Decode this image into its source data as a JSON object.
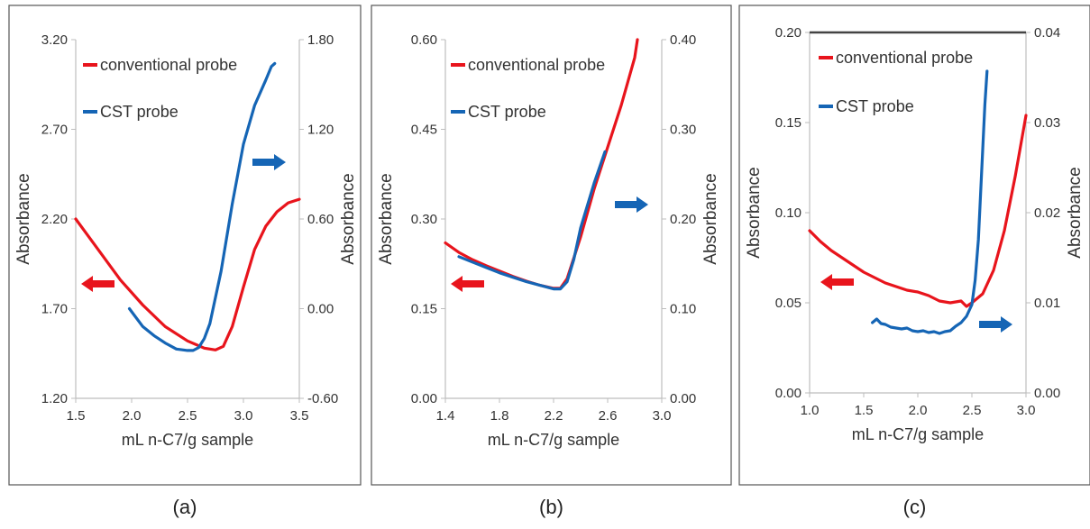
{
  "colors": {
    "conventional": "#e8141c",
    "cst": "#1565b5",
    "axis": "#bdbdbd",
    "frame": "#555555"
  },
  "chart_data": [
    {
      "type": "line",
      "caption": "(a)",
      "xlabel": "mL n-C7/g sample",
      "ylabel_left": "Absorbance",
      "ylabel_right": "Absorbance",
      "xlim": [
        1.5,
        3.5
      ],
      "x_ticks": [
        "1.5",
        "2.0",
        "2.5",
        "3.0",
        "3.5"
      ],
      "y_left_lim": [
        1.2,
        3.2
      ],
      "y_left_ticks": [
        "1.20",
        "1.70",
        "2.20",
        "2.70",
        "3.20"
      ],
      "y_right_lim": [
        -0.6,
        1.8
      ],
      "y_right_ticks": [
        "-0.60",
        "0.00",
        "0.60",
        "1.20",
        "1.80"
      ],
      "legend": [
        "conventional probe",
        "CST probe"
      ],
      "arrows": {
        "conventional": "left",
        "cst": "right"
      },
      "series": [
        {
          "name": "conventional probe",
          "axis": "left",
          "x": [
            1.5,
            1.7,
            1.9,
            2.1,
            2.3,
            2.5,
            2.65,
            2.75,
            2.82,
            2.9,
            3.0,
            3.1,
            3.2,
            3.3,
            3.4,
            3.5
          ],
          "y": [
            2.2,
            2.03,
            1.86,
            1.72,
            1.6,
            1.52,
            1.48,
            1.47,
            1.49,
            1.6,
            1.82,
            2.03,
            2.16,
            2.24,
            2.29,
            2.31
          ]
        },
        {
          "name": "CST probe",
          "axis": "right",
          "x": [
            1.98,
            2.1,
            2.2,
            2.3,
            2.4,
            2.5,
            2.55,
            2.6,
            2.65,
            2.7,
            2.8,
            2.9,
            3.0,
            3.1,
            3.2,
            3.25,
            3.28
          ],
          "y": [
            0.0,
            -0.12,
            -0.18,
            -0.23,
            -0.27,
            -0.28,
            -0.28,
            -0.26,
            -0.2,
            -0.1,
            0.25,
            0.7,
            1.1,
            1.36,
            1.53,
            1.62,
            1.64
          ]
        }
      ]
    },
    {
      "type": "line",
      "caption": "(b)",
      "xlabel": "mL n-C7/g sample",
      "ylabel_left": "Absorbance",
      "ylabel_right": "Absorbance",
      "xlim": [
        1.4,
        3.0
      ],
      "x_ticks": [
        "1.4",
        "1.8",
        "2.2",
        "2.6",
        "3.0"
      ],
      "y_left_lim": [
        0.0,
        0.6
      ],
      "y_left_ticks": [
        "0.00",
        "0.15",
        "0.30",
        "0.45",
        "0.60"
      ],
      "y_right_lim": [
        0.0,
        0.4
      ],
      "y_right_ticks": [
        "0.00",
        "0.10",
        "0.20",
        "0.30",
        "0.40"
      ],
      "legend": [
        "conventional probe",
        "CST probe"
      ],
      "arrows": {
        "conventional": "left",
        "cst": "right"
      },
      "series": [
        {
          "name": "conventional probe",
          "axis": "left",
          "x": [
            1.4,
            1.5,
            1.6,
            1.7,
            1.8,
            1.9,
            2.0,
            2.1,
            2.2,
            2.25,
            2.3,
            2.4,
            2.5,
            2.6,
            2.7,
            2.8,
            2.82
          ],
          "y": [
            0.26,
            0.244,
            0.232,
            0.222,
            0.213,
            0.204,
            0.196,
            0.189,
            0.184,
            0.184,
            0.2,
            0.27,
            0.35,
            0.42,
            0.49,
            0.57,
            0.6
          ]
        },
        {
          "name": "CST probe",
          "axis": "right",
          "x": [
            1.5,
            1.6,
            1.7,
            1.8,
            1.9,
            2.0,
            2.1,
            2.2,
            2.25,
            2.3,
            2.35,
            2.4,
            2.5,
            2.58
          ],
          "y": [
            0.158,
            0.152,
            0.146,
            0.14,
            0.135,
            0.13,
            0.126,
            0.122,
            0.122,
            0.13,
            0.155,
            0.19,
            0.24,
            0.275
          ]
        }
      ]
    },
    {
      "type": "line",
      "caption": "(c)",
      "xlabel": "mL n-C7/g sample",
      "ylabel_left": "Absorbance",
      "ylabel_right": "Absorbance",
      "xlim": [
        1.0,
        3.0
      ],
      "x_ticks": [
        "1.0",
        "1.5",
        "2.0",
        "2.5",
        "3.0"
      ],
      "y_left_lim": [
        0.0,
        0.2
      ],
      "y_left_ticks": [
        "0.00",
        "0.05",
        "0.10",
        "0.15",
        "0.20"
      ],
      "y_right_lim": [
        0.0,
        0.04
      ],
      "y_right_ticks": [
        "0.00",
        "0.01",
        "0.02",
        "0.03",
        "0.04"
      ],
      "legend": [
        "conventional probe",
        "CST probe"
      ],
      "arrows": {
        "conventional": "left",
        "cst": "right"
      },
      "series": [
        {
          "name": "conventional probe",
          "axis": "left",
          "x": [
            1.0,
            1.1,
            1.2,
            1.3,
            1.4,
            1.5,
            1.6,
            1.7,
            1.8,
            1.9,
            2.0,
            2.1,
            2.2,
            2.3,
            2.4,
            2.45,
            2.5,
            2.6,
            2.7,
            2.8,
            2.9,
            3.0
          ],
          "y": [
            0.09,
            0.084,
            0.079,
            0.075,
            0.071,
            0.067,
            0.064,
            0.061,
            0.059,
            0.057,
            0.056,
            0.054,
            0.051,
            0.05,
            0.051,
            0.048,
            0.05,
            0.055,
            0.068,
            0.09,
            0.12,
            0.154
          ]
        },
        {
          "name": "CST probe",
          "axis": "right",
          "x": [
            1.58,
            1.62,
            1.66,
            1.7,
            1.75,
            1.8,
            1.85,
            1.9,
            1.95,
            2.0,
            2.05,
            2.1,
            2.15,
            2.2,
            2.25,
            2.3,
            2.35,
            2.4,
            2.45,
            2.5,
            2.53,
            2.56,
            2.58,
            2.6,
            2.62,
            2.64
          ],
          "y": [
            0.0078,
            0.0082,
            0.0077,
            0.0076,
            0.0073,
            0.0072,
            0.0071,
            0.0072,
            0.0069,
            0.0068,
            0.0069,
            0.0067,
            0.0068,
            0.0066,
            0.0068,
            0.0069,
            0.0074,
            0.0078,
            0.0085,
            0.0098,
            0.0125,
            0.017,
            0.022,
            0.027,
            0.032,
            0.0357
          ]
        }
      ]
    }
  ]
}
